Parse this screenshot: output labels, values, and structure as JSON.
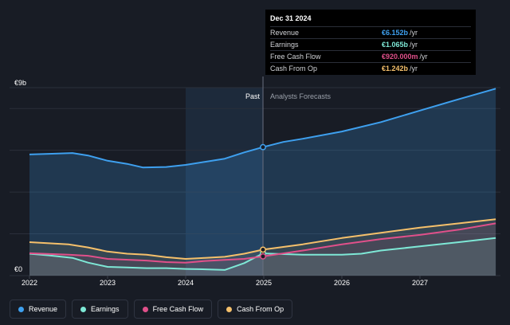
{
  "tooltip": {
    "date": "Dec 31 2024",
    "rows": [
      {
        "name": "Revenue",
        "value": "€6.152b",
        "unit": "/yr",
        "color": "#3ea0ef"
      },
      {
        "name": "Earnings",
        "value": "€1.065b",
        "unit": "/yr",
        "color": "#7ee8d6"
      },
      {
        "name": "Free Cash Flow",
        "value": "€920.000m",
        "unit": "/yr",
        "color": "#e0508a"
      },
      {
        "name": "Cash From Op",
        "value": "€1.242b",
        "unit": "/yr",
        "color": "#f5c06b"
      }
    ]
  },
  "labels": {
    "past": "Past",
    "forecast": "Analysts Forecasts",
    "ymax": "€9b",
    "yzero": "€0"
  },
  "chart_data": {
    "type": "area",
    "x_ticks": [
      "2022",
      "2023",
      "2024",
      "2025",
      "2026",
      "2027"
    ],
    "ylim": [
      0,
      9
    ],
    "y_unit": "€b",
    "divider_x": 2024.99,
    "highlight_start": 2024.0,
    "series": [
      {
        "name": "Revenue",
        "color": "#3ea0ef",
        "x": [
          2022.0,
          2022.25,
          2022.55,
          2022.75,
          2023.0,
          2023.25,
          2023.45,
          2023.75,
          2024.0,
          2024.25,
          2024.5,
          2024.75,
          2024.99,
          2025.25,
          2025.5,
          2026.0,
          2026.5,
          2027.0,
          2027.5,
          2027.97
        ],
        "y": [
          5.8,
          5.83,
          5.87,
          5.75,
          5.5,
          5.35,
          5.18,
          5.2,
          5.3,
          5.45,
          5.6,
          5.9,
          6.15,
          6.4,
          6.55,
          6.9,
          7.35,
          7.9,
          8.45,
          8.95
        ]
      },
      {
        "name": "Earnings",
        "color": "#7ee8d6",
        "x": [
          2022.0,
          2022.25,
          2022.55,
          2022.75,
          2023.0,
          2023.25,
          2023.5,
          2023.75,
          2024.0,
          2024.25,
          2024.5,
          2024.75,
          2024.99,
          2025.5,
          2026.0,
          2026.25,
          2026.5,
          2027.0,
          2027.5,
          2027.97
        ],
        "y": [
          1.05,
          0.97,
          0.85,
          0.62,
          0.42,
          0.39,
          0.36,
          0.36,
          0.32,
          0.3,
          0.27,
          0.6,
          1.065,
          1.0,
          1.0,
          1.05,
          1.2,
          1.4,
          1.6,
          1.8
        ]
      },
      {
        "name": "Free Cash Flow",
        "color": "#e0508a",
        "x": [
          2022.0,
          2022.5,
          2022.75,
          2023.0,
          2023.5,
          2023.75,
          2024.0,
          2024.25,
          2024.5,
          2024.75,
          2024.99,
          2025.5,
          2026.0,
          2026.5,
          2027.0,
          2027.5,
          2027.97
        ],
        "y": [
          1.07,
          1.0,
          0.95,
          0.8,
          0.72,
          0.65,
          0.62,
          0.7,
          0.75,
          0.8,
          0.92,
          1.2,
          1.5,
          1.75,
          1.95,
          2.2,
          2.5
        ]
      },
      {
        "name": "Cash From Op",
        "color": "#f5c06b",
        "x": [
          2022.0,
          2022.25,
          2022.5,
          2022.75,
          2023.0,
          2023.25,
          2023.5,
          2023.75,
          2024.0,
          2024.25,
          2024.5,
          2024.75,
          2024.99,
          2025.5,
          2026.0,
          2026.5,
          2027.0,
          2027.5,
          2027.97
        ],
        "y": [
          1.6,
          1.55,
          1.5,
          1.35,
          1.15,
          1.05,
          1.0,
          0.88,
          0.8,
          0.85,
          0.9,
          1.05,
          1.242,
          1.5,
          1.8,
          2.05,
          2.3,
          2.5,
          2.7
        ]
      }
    ]
  }
}
